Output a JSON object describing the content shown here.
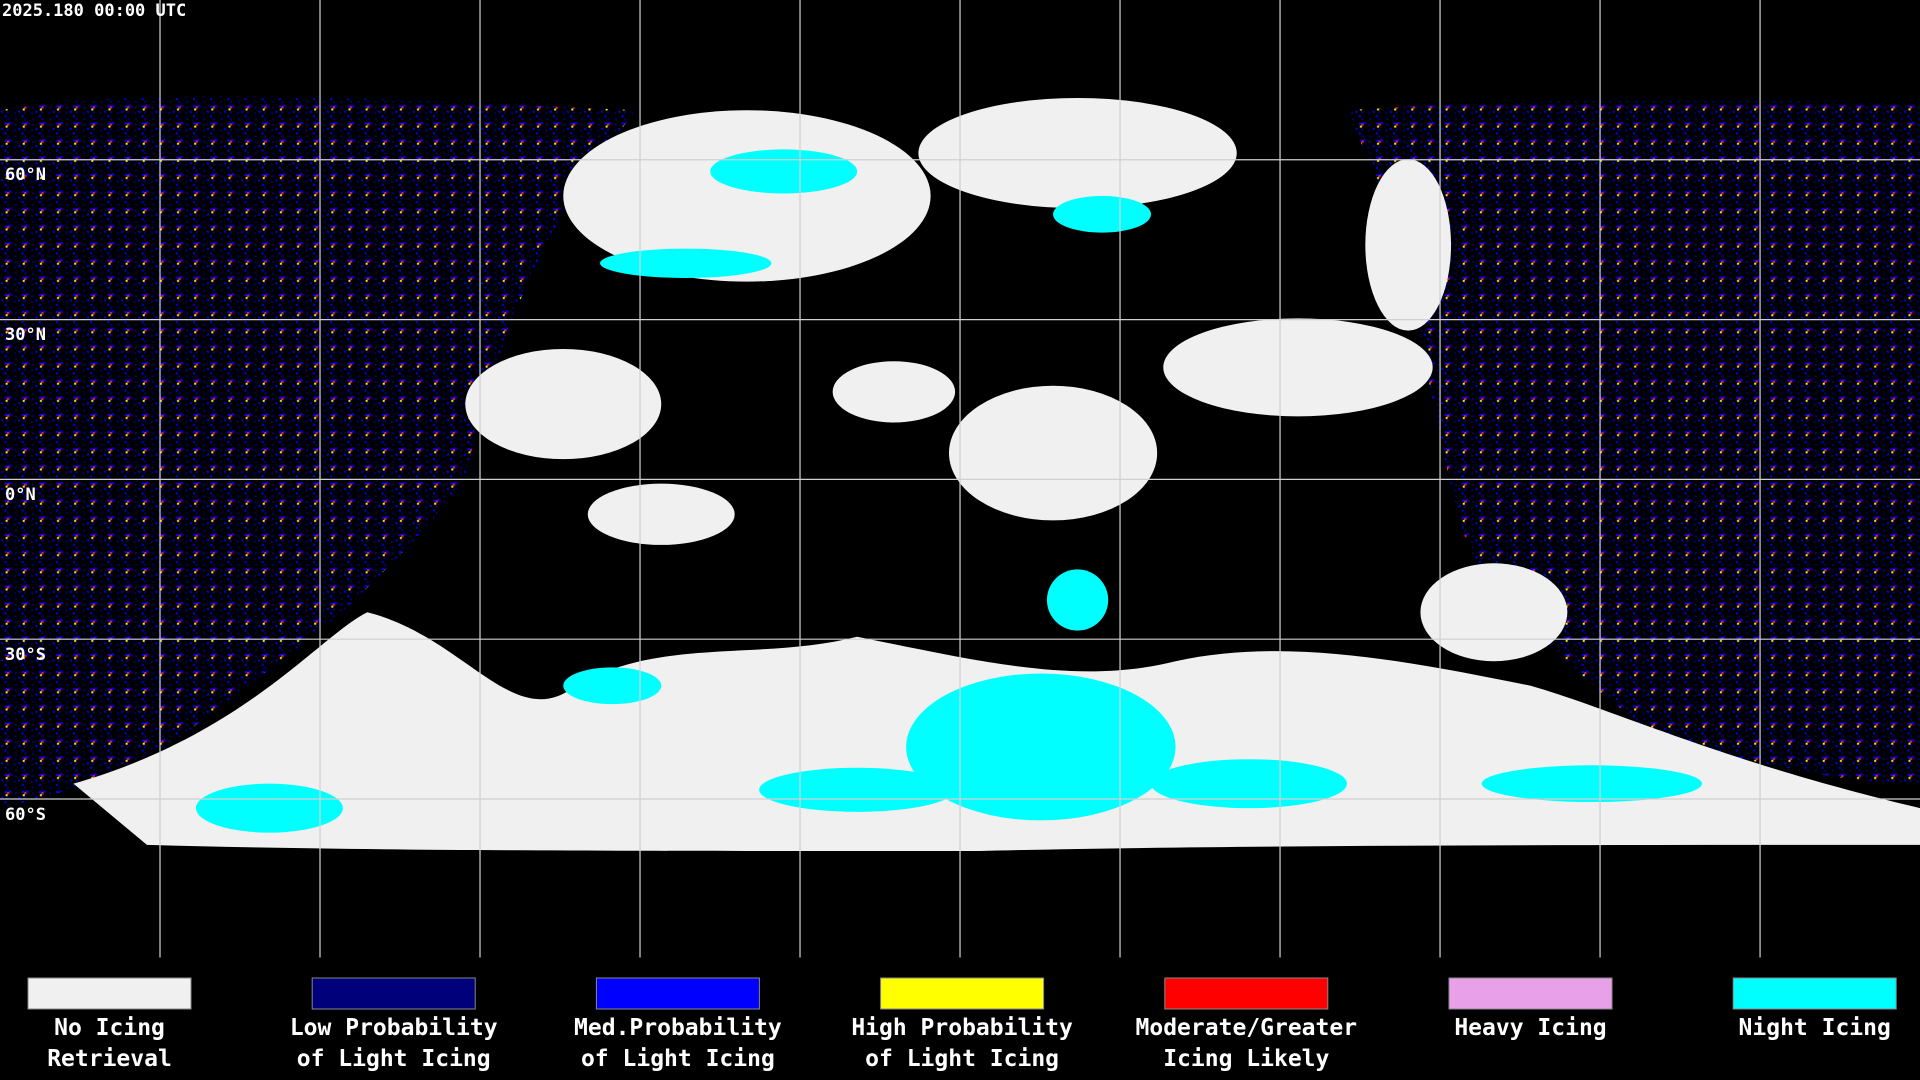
{
  "header": {
    "timestamp": "2025.180 00:00 UTC"
  },
  "latitude_labels": [
    "60°N",
    "30°N",
    "0°N",
    "30°S",
    "60°S"
  ],
  "legend": [
    {
      "color": "#f0f0f0",
      "lines": [
        "No Icing",
        "Retrieval"
      ]
    },
    {
      "color": "#00007a",
      "lines": [
        "Low Probability",
        "of Light Icing"
      ]
    },
    {
      "color": "#0000ff",
      "lines": [
        "Med.Probability",
        "of Light Icing"
      ]
    },
    {
      "color": "#ffff00",
      "lines": [
        "High Probability",
        "of Light Icing"
      ]
    },
    {
      "color": "#ff0000",
      "lines": [
        "Moderate/Greater",
        "Icing Likely"
      ]
    },
    {
      "color": "#e8a0e8",
      "lines": [
        "Heavy Icing"
      ]
    },
    {
      "color": "#00ffff",
      "lines": [
        "Night Icing"
      ]
    }
  ]
}
